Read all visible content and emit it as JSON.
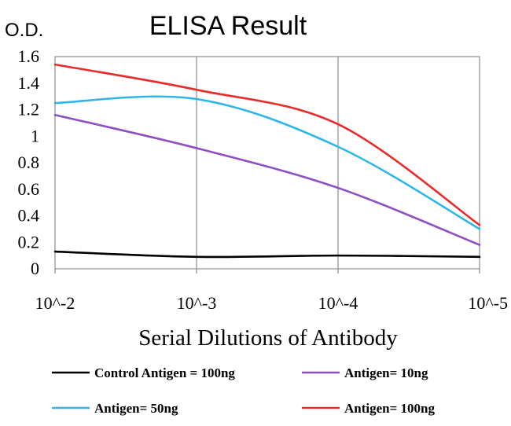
{
  "chart_data": {
    "type": "line",
    "title": "ELISA Result",
    "ylabel": "O.D.",
    "xlabel": "Serial Dilutions of Antibody",
    "categories": [
      "10^-2",
      "10^-3",
      "10^-4",
      "10^-5"
    ],
    "ylim": [
      0,
      1.6
    ],
    "yticks": [
      "0",
      "0.2",
      "0.4",
      "0.6",
      "0.8",
      "1",
      "1.2",
      "1.4",
      "1.6"
    ],
    "grid": "vertical",
    "legend_position": "bottom",
    "series": [
      {
        "name": "Control Antigen = 100ng",
        "color": "#000000",
        "values": [
          0.13,
          0.09,
          0.1,
          0.09
        ]
      },
      {
        "name": "Antigen= 10ng",
        "color": "#8e4fc4",
        "values": [
          1.16,
          0.91,
          0.61,
          0.18
        ]
      },
      {
        "name": "Antigen= 50ng",
        "color": "#2eb6e8",
        "values": [
          1.25,
          1.28,
          0.92,
          0.3
        ]
      },
      {
        "name": "Antigen= 100ng",
        "color": "#e82b2b",
        "values": [
          1.54,
          1.35,
          1.09,
          0.33
        ]
      }
    ]
  }
}
